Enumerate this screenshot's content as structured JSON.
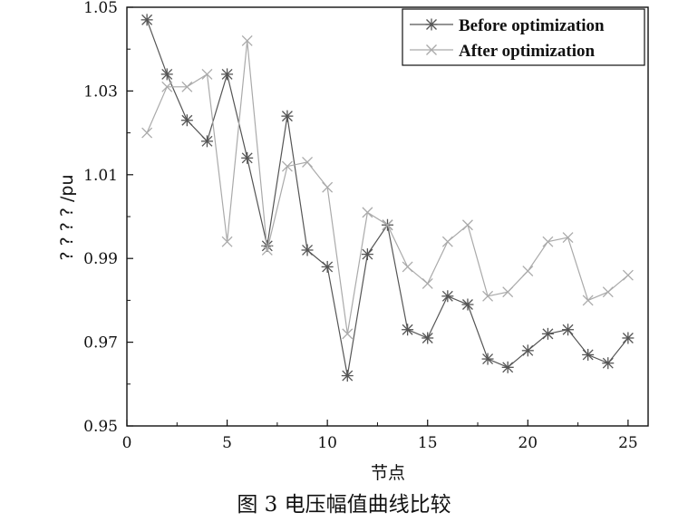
{
  "chart_data": {
    "type": "line",
    "xlabel": "节点",
    "ylabel": "? ? ? ? /pu",
    "xlim": [
      0,
      26
    ],
    "ylim": [
      0.95,
      1.05
    ],
    "xticks": [
      0,
      5,
      10,
      15,
      20,
      25
    ],
    "yticks": [
      0.95,
      0.97,
      0.99,
      1.01,
      1.03,
      1.05
    ],
    "ytick_labels": [
      "0.95",
      "0.97",
      "0.99",
      "1.01",
      "1.03",
      "1.05"
    ],
    "grid": false,
    "legend_position": "top-right",
    "x": [
      1,
      2,
      3,
      4,
      5,
      6,
      7,
      8,
      9,
      10,
      11,
      12,
      13,
      14,
      15,
      16,
      17,
      18,
      19,
      20,
      21,
      22,
      23,
      24,
      25
    ],
    "series": [
      {
        "name": "Before optimization",
        "marker": "asterisk",
        "color": "#555555",
        "values": [
          1.047,
          1.034,
          1.023,
          1.018,
          1.034,
          1.014,
          0.993,
          1.024,
          0.992,
          0.988,
          0.962,
          0.991,
          0.998,
          0.973,
          0.971,
          0.981,
          0.979,
          0.966,
          0.964,
          0.968,
          0.972,
          0.973,
          0.967,
          0.965,
          0.971
        ]
      },
      {
        "name": "After optimization",
        "marker": "x",
        "color": "#aaaaaa",
        "values": [
          1.02,
          1.031,
          1.031,
          1.034,
          0.994,
          1.042,
          0.992,
          1.012,
          1.013,
          1.007,
          0.972,
          1.001,
          0.998,
          0.988,
          0.984,
          0.994,
          0.998,
          0.981,
          0.982,
          0.987,
          0.994,
          0.995,
          0.98,
          0.982,
          0.986
        ]
      }
    ]
  },
  "caption": "图 3  电压幅值曲线比较"
}
